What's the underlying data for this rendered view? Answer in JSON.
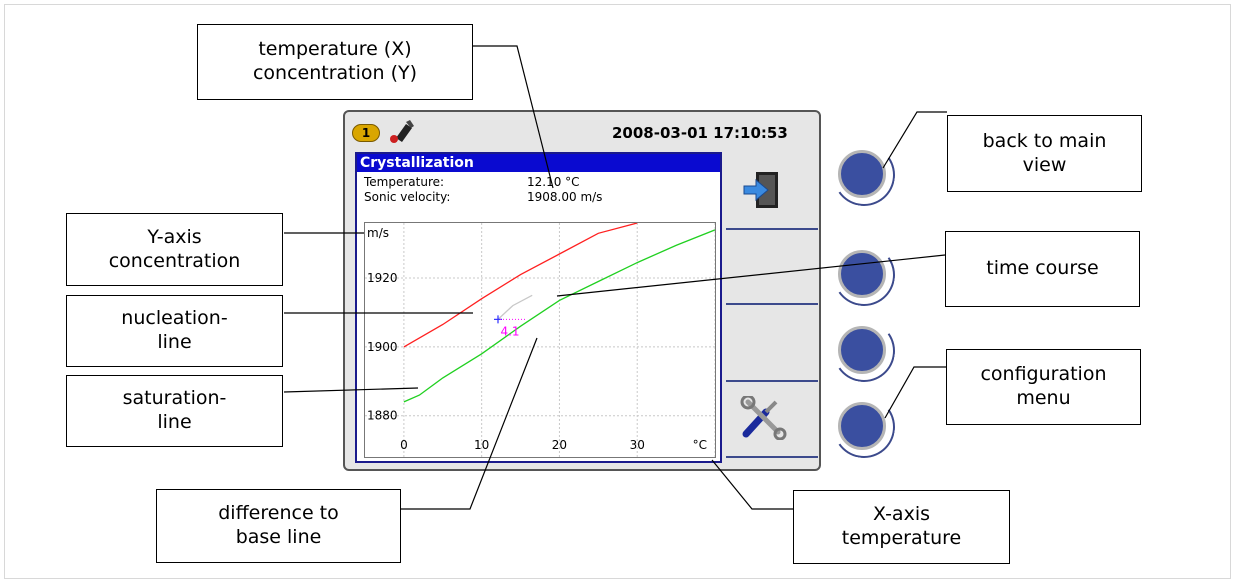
{
  "callouts": {
    "temp_conc": [
      "temperature (X)",
      "concentration (Y)"
    ],
    "back": [
      "back to main",
      "view"
    ],
    "y_axis": [
      "Y-axis",
      "concentration"
    ],
    "time_course": "time course",
    "nucleation": [
      "nucleation-",
      "line"
    ],
    "saturation": [
      "saturation-",
      "line"
    ],
    "config": [
      "configuration",
      "menu"
    ],
    "difference": [
      "difference to",
      "base line"
    ],
    "x_axis": [
      "X-axis",
      "temperature"
    ]
  },
  "device": {
    "badge": "1",
    "datetime": "2008-03-01 17:10:53",
    "panel_title": "Crystallization",
    "readouts": [
      {
        "label": "Temperature:",
        "value": "12.10 °C"
      },
      {
        "label": "Sonic velocity:",
        "value": "1908.00 m/s"
      }
    ],
    "softkeys": [
      "exit-icon",
      "",
      "",
      "tools-icon"
    ]
  },
  "chart_data": {
    "type": "line",
    "xlabel": "°C",
    "ylabel": "m/s",
    "xlim": [
      -5,
      40
    ],
    "ylim": [
      1868,
      1936
    ],
    "x_ticks": [
      0,
      10,
      20,
      30
    ],
    "y_ticks": [
      1880,
      1900,
      1920
    ],
    "grid": true,
    "series": [
      {
        "color": "#ff2020",
        "x": [
          0,
          5,
          10,
          15,
          20,
          25,
          30
        ],
        "y": [
          1900,
          1906.5,
          1914,
          1921,
          1927,
          1933,
          1936
        ]
      },
      {
        "color": "#20d020",
        "x": [
          0,
          2,
          5,
          10,
          15,
          20,
          25,
          30,
          35,
          40
        ],
        "y": [
          1884,
          1886,
          1891,
          1898,
          1906,
          1913.5,
          1919,
          1924.5,
          1929.5,
          1934
        ]
      },
      {
        "color": "#c8c8c8",
        "x": [
          12.1,
          14,
          16.5
        ],
        "y": [
          1908,
          1912,
          1915
        ]
      }
    ],
    "current_point": {
      "x": 12.1,
      "y": 1908
    },
    "difference_label": "4.1",
    "colors": {
      "cursor": "#3030ff",
      "difference": "#ff00ff"
    }
  }
}
